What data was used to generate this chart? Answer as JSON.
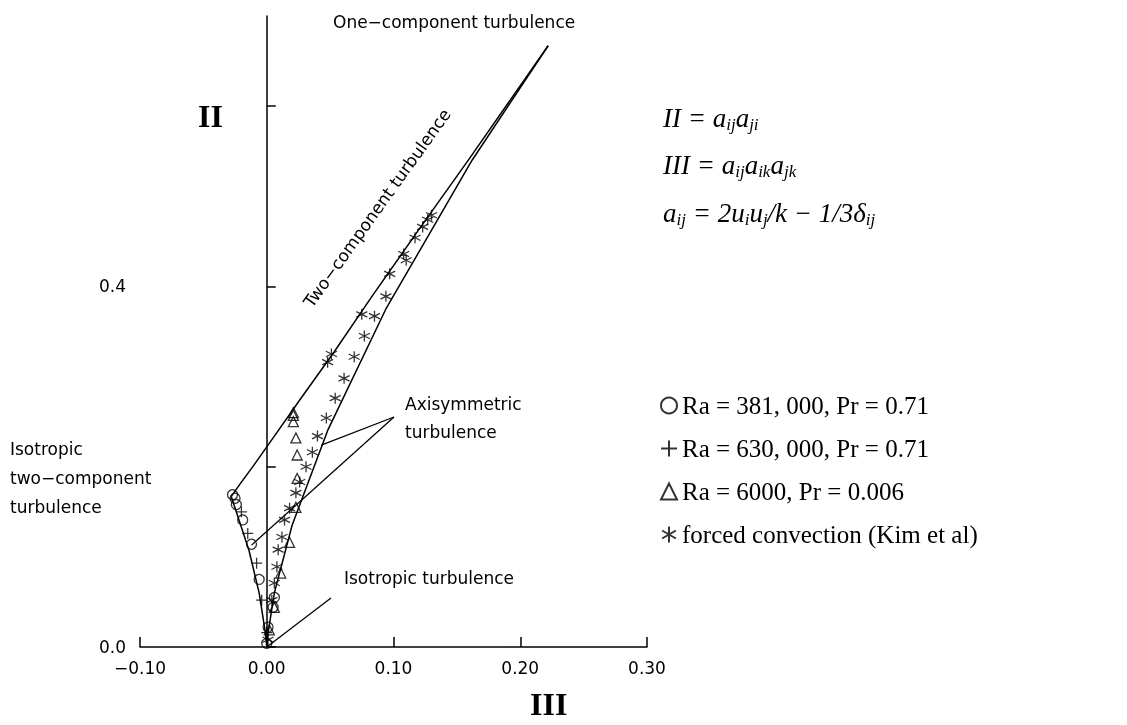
{
  "chart_data": {
    "type": "scatter",
    "xlabel": "III",
    "ylabel": "II",
    "xlim": [
      -0.1,
      0.3
    ],
    "ylim": [
      0,
      0.7
    ],
    "xticks": [
      {
        "value": -0.1,
        "label": "−0.10"
      },
      {
        "value": 0,
        "label": "0.00"
      },
      {
        "value": 0.1,
        "label": "0.10"
      },
      {
        "value": 0.2,
        "label": "0.20"
      },
      {
        "value": 0.3,
        "label": "0.30"
      }
    ],
    "yticks": [
      {
        "value": 0,
        "label": "0.0"
      },
      {
        "value": 0.2,
        "label": null
      },
      {
        "value": 0.4,
        "label": "0.4"
      },
      {
        "value": 0.6,
        "label": null
      }
    ],
    "legend": "right",
    "series": [
      {
        "type": "line",
        "color": "#000000",
        "marker": "none",
        "x": [
          0,
          -0.001,
          -0.006,
          -0.014,
          -0.028
        ],
        "values": [
          0,
          0.015,
          0.06,
          0.107,
          0.167
        ]
      },
      {
        "type": "line",
        "color": "#000000",
        "marker": "none",
        "x": [
          -0.028,
          -0.027,
          -0.021,
          -0.01,
          0.006,
          0.027,
          0.053,
          0.083,
          0.119,
          0.16,
          0.222
        ],
        "values": [
          0.167,
          0.169,
          0.181,
          0.202,
          0.234,
          0.276,
          0.327,
          0.389,
          0.461,
          0.542,
          0.667
        ]
      },
      {
        "type": "line",
        "color": "#000000",
        "marker": "none",
        "x": [
          0,
          0.001,
          0.006,
          0.02,
          0.048,
          0.094,
          0.162,
          0.222
        ],
        "values": [
          0,
          0.015,
          0.06,
          0.135,
          0.24,
          0.375,
          0.54,
          0.667
        ]
      },
      {
        "name": "Ra = 381, 000, Pr = 0.71",
        "color": "#000000",
        "marker": "circle",
        "x": [
          -0.027,
          -0.025,
          -0.024,
          -0.019,
          -0.012,
          -0.006,
          0.006,
          0.005,
          0.001,
          0
        ],
        "values": [
          0.169,
          0.165,
          0.158,
          0.141,
          0.114,
          0.075,
          0.055,
          0.044,
          0.022,
          0.004
        ]
      },
      {
        "name": "Ra = 630, 000, Pr = 0.71",
        "color": "#000000",
        "marker": "cross",
        "x": [
          -0.02,
          -0.015,
          -0.008,
          -0.004,
          0
        ],
        "values": [
          0.15,
          0.126,
          0.093,
          0.052,
          0.016
        ]
      },
      {
        "name": "Ra = 6000, Pr = 0.006",
        "color": "#000000",
        "marker": "triangle",
        "x": [
          0.021,
          0.021,
          0.021,
          0.023,
          0.024,
          0.024,
          0.023,
          0.018,
          0.011,
          0.006,
          0.002
        ],
        "values": [
          0.26,
          0.257,
          0.25,
          0.232,
          0.213,
          0.187,
          0.155,
          0.116,
          0.082,
          0.044,
          0.019
        ]
      },
      {
        "name": "forced convection (Kim et al)",
        "color": "#000000",
        "x": [
          0.13,
          0.127,
          0.123,
          0.117,
          0.108,
          0.11,
          0.097,
          0.094,
          0.075,
          0.085,
          0.077,
          0.051,
          0.048,
          0.069,
          0.061,
          0.054,
          0.047,
          0.04,
          0.036,
          0.031,
          0.026,
          0.023,
          0.018,
          0.014,
          0.012,
          0.009,
          0.008,
          0.006,
          0.004,
          0.001
        ],
        "values": [
          0.479,
          0.474,
          0.466,
          0.454,
          0.436,
          0.429,
          0.414,
          0.389,
          0.369,
          0.367,
          0.345,
          0.325,
          0.316,
          0.322,
          0.298,
          0.276,
          0.254,
          0.234,
          0.216,
          0.2,
          0.183,
          0.171,
          0.154,
          0.141,
          0.122,
          0.108,
          0.089,
          0.071,
          0.052,
          0.008
        ]
      }
    ],
    "annotations": [
      "One−component turbulence",
      "Two−component turbulence",
      {
        "text": "Axisymmetric\nturbulence",
        "x": 0.043,
        "y": 0.224
      },
      "Isotropic\ntwo−component\nturbulence",
      {
        "text": "Isotropic turbulence",
        "x": 0,
        "y": 0
      },
      "II = a$_{ij}$a$_{ji}$",
      "III = a$_{ij}$a$_{ik}$a$_{jk}$",
      "a$_{ij}$ = 2u$_{i}$u$_{j}$/k − 1/3δ$_{ij}$"
    ]
  }
}
